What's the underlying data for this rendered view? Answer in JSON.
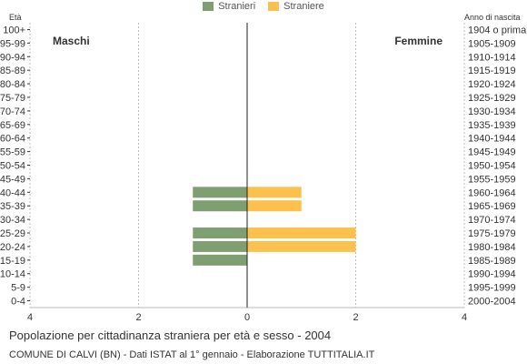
{
  "colors": {
    "males": "#7f9f72",
    "females": "#fcc04c",
    "axis": "#222222",
    "grid": "#bbbbbb",
    "text": "#333333"
  },
  "legend": {
    "males_label": "Stranieri",
    "females_label": "Straniere"
  },
  "labels": {
    "left_axis_title": "Età",
    "right_axis_title": "Anno di nascita",
    "male_side": "Maschi",
    "female_side": "Femmine"
  },
  "title": "Popolazione per cittadinanza straniera per età e sesso - 2004",
  "subtitle": "COMUNE DI CALVI (BN) - Dati ISTAT al 1° gennaio - Elaborazione TUTTITALIA.IT",
  "chart_data": {
    "type": "bar",
    "orientation": "horizontal-population-pyramid",
    "categories": [
      "100+",
      "95-99",
      "90-94",
      "85-89",
      "80-84",
      "75-79",
      "70-74",
      "65-69",
      "60-64",
      "55-59",
      "50-54",
      "45-49",
      "40-44",
      "35-39",
      "30-34",
      "25-29",
      "20-24",
      "15-19",
      "10-14",
      "5-9",
      "0-4"
    ],
    "birth_years": [
      "1904 o prima",
      "1905-1909",
      "1910-1914",
      "1915-1919",
      "1920-1924",
      "1925-1929",
      "1930-1934",
      "1935-1939",
      "1940-1944",
      "1945-1949",
      "1950-1954",
      "1955-1959",
      "1960-1964",
      "1965-1969",
      "1970-1974",
      "1975-1979",
      "1980-1984",
      "1985-1989",
      "1990-1994",
      "1995-1999",
      "2000-2004"
    ],
    "series": [
      {
        "name": "Stranieri",
        "values": [
          0,
          0,
          0,
          0,
          0,
          0,
          0,
          0,
          0,
          0,
          0,
          0,
          1,
          1,
          0,
          1,
          1,
          1,
          0,
          0,
          0
        ]
      },
      {
        "name": "Straniere",
        "values": [
          0,
          0,
          0,
          0,
          0,
          0,
          0,
          0,
          0,
          0,
          0,
          0,
          1,
          1,
          0,
          2,
          2,
          0,
          0,
          0,
          0
        ]
      }
    ],
    "xlim": [
      -4,
      4
    ],
    "x_ticks": [
      -4,
      -2,
      0,
      2,
      4
    ],
    "x_tick_labels": [
      "4",
      "2",
      "0",
      "2",
      "4"
    ],
    "grid": true
  }
}
